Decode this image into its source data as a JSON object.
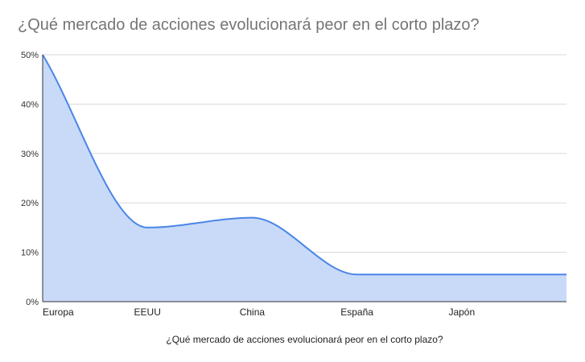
{
  "chart_data": {
    "type": "area",
    "title": "¿Qué mercado de acciones evolucionará peor en el corto plazo?",
    "xlabel": "¿Qué mercado de acciones evolucionará peor en el corto plazo?",
    "ylabel": "",
    "categories": [
      "Europa",
      "EEUU",
      "China",
      "España",
      "Japón"
    ],
    "x": [
      0,
      1,
      2,
      3,
      4,
      5
    ],
    "values": [
      50,
      15,
      17,
      5.5,
      5.5,
      5.5
    ],
    "ylim": [
      0,
      50
    ],
    "yticks": [
      "0%",
      "10%",
      "20%",
      "30%",
      "40%",
      "50%"
    ],
    "grid": true,
    "legend": "none",
    "colors": {
      "line": "#4a86e8",
      "fill": "#c9daf8",
      "grid": "#d9d9d9",
      "axis": "#333333",
      "title": "#757575"
    }
  }
}
